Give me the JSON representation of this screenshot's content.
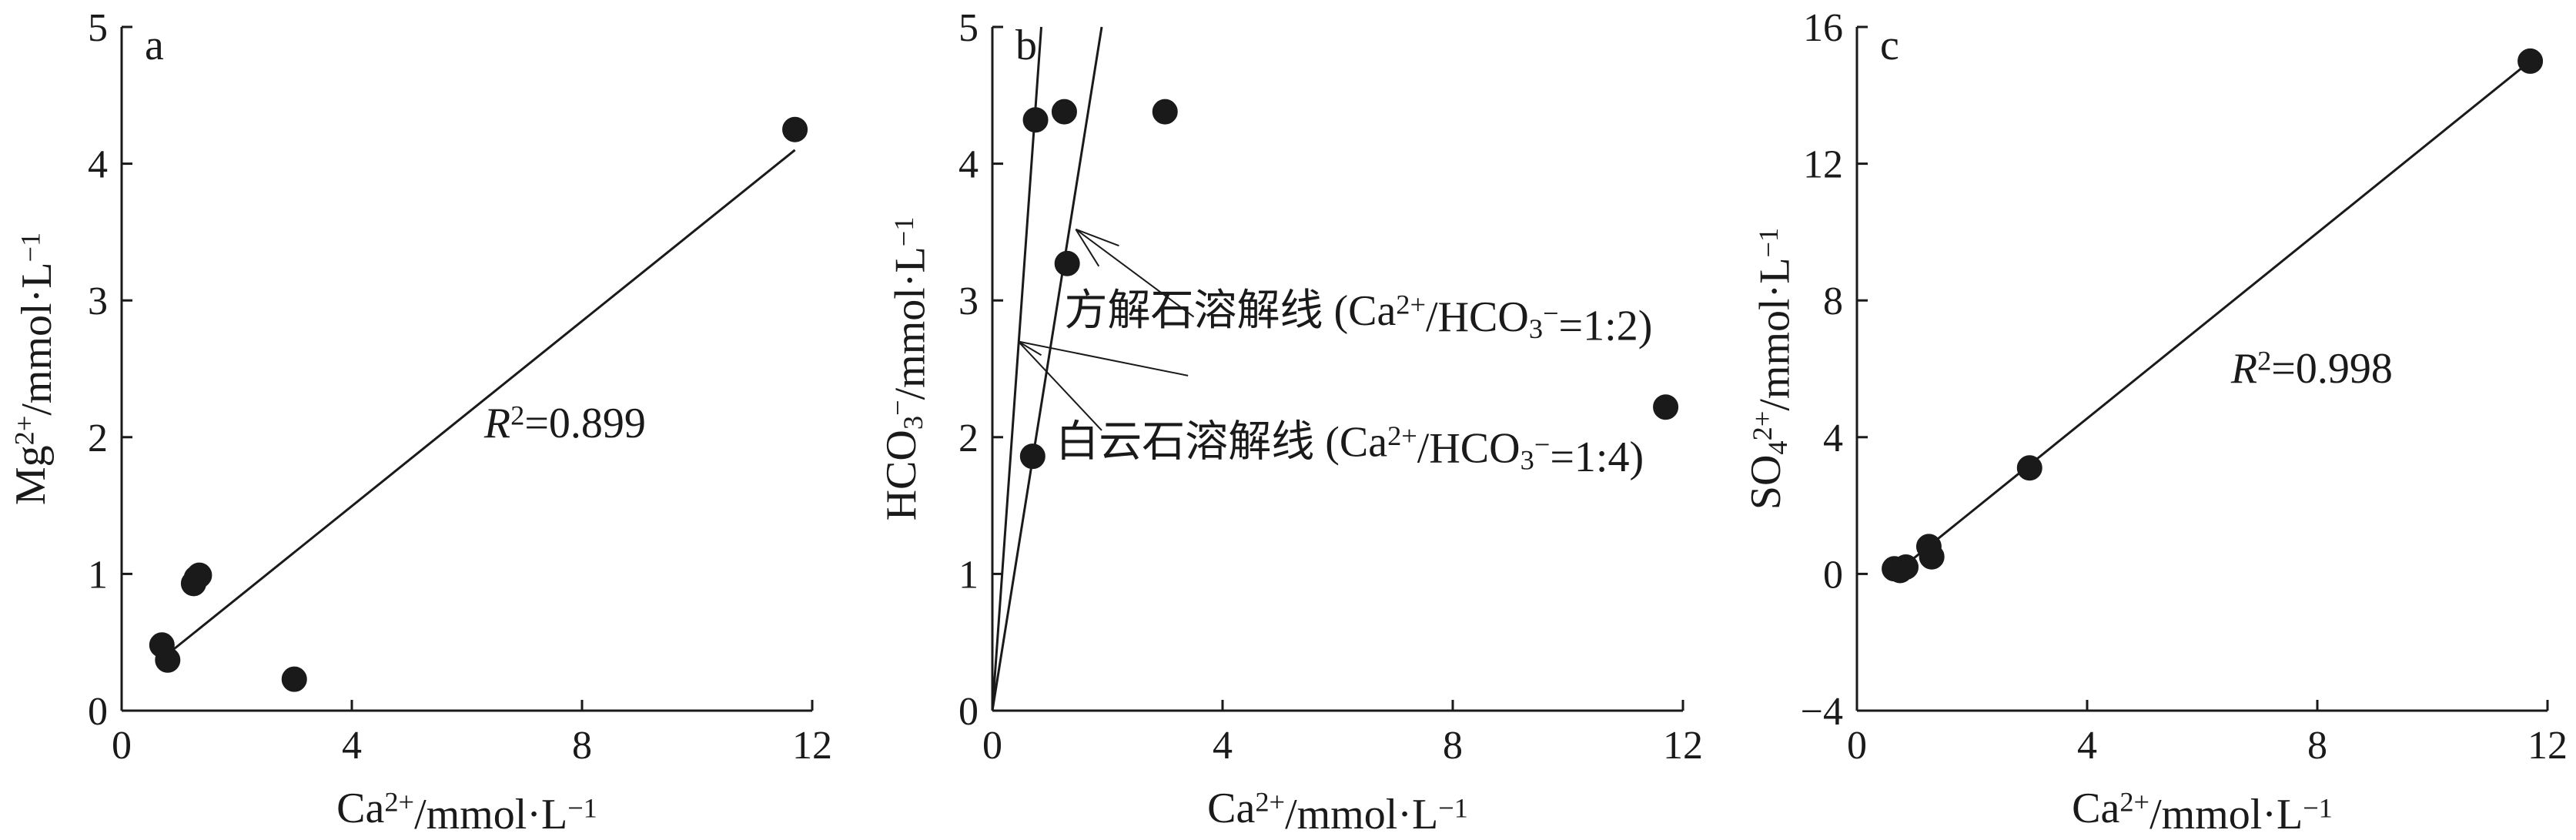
{
  "chart_data": [
    {
      "panel": "a",
      "type": "scatter",
      "xlabel": "Ca²⁺/mmol·L⁻¹",
      "ylabel": "Mg²⁺/mmol·L⁻¹",
      "xlim": [
        0,
        12
      ],
      "ylim": [
        0,
        5
      ],
      "xticks": [
        0,
        4,
        8,
        12
      ],
      "yticks": [
        0,
        1,
        2,
        3,
        4,
        5
      ],
      "points": [
        {
          "x": 0.7,
          "y": 0.48
        },
        {
          "x": 0.8,
          "y": 0.37
        },
        {
          "x": 1.25,
          "y": 0.93
        },
        {
          "x": 1.3,
          "y": 0.97
        },
        {
          "x": 1.35,
          "y": 0.99
        },
        {
          "x": 3.0,
          "y": 0.23
        },
        {
          "x": 11.7,
          "y": 4.25
        }
      ],
      "fit_line": {
        "x": [
          0.7,
          11.7
        ],
        "y": [
          0.38,
          4.1
        ]
      },
      "annotation": {
        "text_italic": "R",
        "sup": "2",
        "rest": "=0.899",
        "x": 6.3,
        "y": 2.0
      }
    },
    {
      "panel": "b",
      "type": "scatter",
      "xlabel": "Ca²⁺/mmol·L⁻¹",
      "ylabel": "HCO₃⁻/mmol·L⁻¹",
      "xlim": [
        0,
        12
      ],
      "ylim": [
        0,
        5
      ],
      "xticks": [
        0,
        4,
        8,
        12
      ],
      "yticks": [
        0,
        1,
        2,
        3,
        4,
        5
      ],
      "points": [
        {
          "x": 0.75,
          "y": 4.32
        },
        {
          "x": 1.25,
          "y": 4.38
        },
        {
          "x": 3.0,
          "y": 4.38
        },
        {
          "x": 1.3,
          "y": 3.27
        },
        {
          "x": 0.7,
          "y": 1.86
        },
        {
          "x": 11.7,
          "y": 2.22
        }
      ],
      "lines": [
        {
          "name": "方解石溶解线 (Ca²⁺/HCO₃⁻=1:2)",
          "x": [
            0,
            1.9
          ],
          "y": [
            0,
            5.0
          ]
        },
        {
          "name": "白云石溶解线 (Ca²⁺/HCO₃⁻=1:4)",
          "x": [
            0,
            0.85
          ],
          "y": [
            0,
            5.0
          ]
        },
        {
          "name": "",
          "x": [
            0,
            0
          ],
          "y": [
            0,
            2.38
          ]
        }
      ],
      "annotations": [
        {
          "text": "方解石溶解线 (Ca²⁺/HCO₃⁻=1:2)",
          "x": 1.25,
          "y": 2.82
        },
        {
          "text": "白云石溶解线 (Ca²⁺/HCO₃⁻=1:4)",
          "x": 1.1,
          "y": 1.86
        }
      ],
      "leaders": [
        {
          "x": [
            1.45,
            3.5
          ],
          "y": [
            3.52,
            2.88
          ]
        },
        {
          "x": [
            1.45,
            1.85
          ],
          "y": [
            3.52,
            3.25
          ]
        },
        {
          "x": [
            1.45,
            2.2
          ],
          "y": [
            3.52,
            3.4
          ]
        },
        {
          "x": [
            0.45,
            3.4
          ],
          "y": [
            2.7,
            2.45
          ]
        },
        {
          "x": [
            0.45,
            1.9
          ],
          "y": [
            2.7,
            2.05
          ]
        },
        {
          "x": [
            0.45,
            0.85
          ],
          "y": [
            2.7,
            2.6
          ]
        }
      ]
    },
    {
      "panel": "c",
      "type": "scatter",
      "xlabel": "Ca²⁺/mmol·L⁻¹",
      "ylabel": "SO₄²⁺/mmol·L⁻¹",
      "xlim": [
        0,
        12
      ],
      "ylim": [
        -4,
        16
      ],
      "xticks": [
        0,
        4,
        8,
        12
      ],
      "yticks": [
        -4,
        0,
        4,
        8,
        12,
        16
      ],
      "points": [
        {
          "x": 0.65,
          "y": 0.15
        },
        {
          "x": 0.85,
          "y": 0.2
        },
        {
          "x": 0.75,
          "y": 0.1
        },
        {
          "x": 1.25,
          "y": 0.8
        },
        {
          "x": 1.3,
          "y": 0.5
        },
        {
          "x": 3.0,
          "y": 3.1
        },
        {
          "x": 11.7,
          "y": 15.0
        }
      ],
      "fit_line": {
        "x": [
          0.65,
          11.7
        ],
        "y": [
          0.0,
          15.0
        ]
      },
      "annotation": {
        "text_italic": "R",
        "sup": "2",
        "rest": "=0.998",
        "x": 6.5,
        "y": 5.6
      }
    }
  ]
}
